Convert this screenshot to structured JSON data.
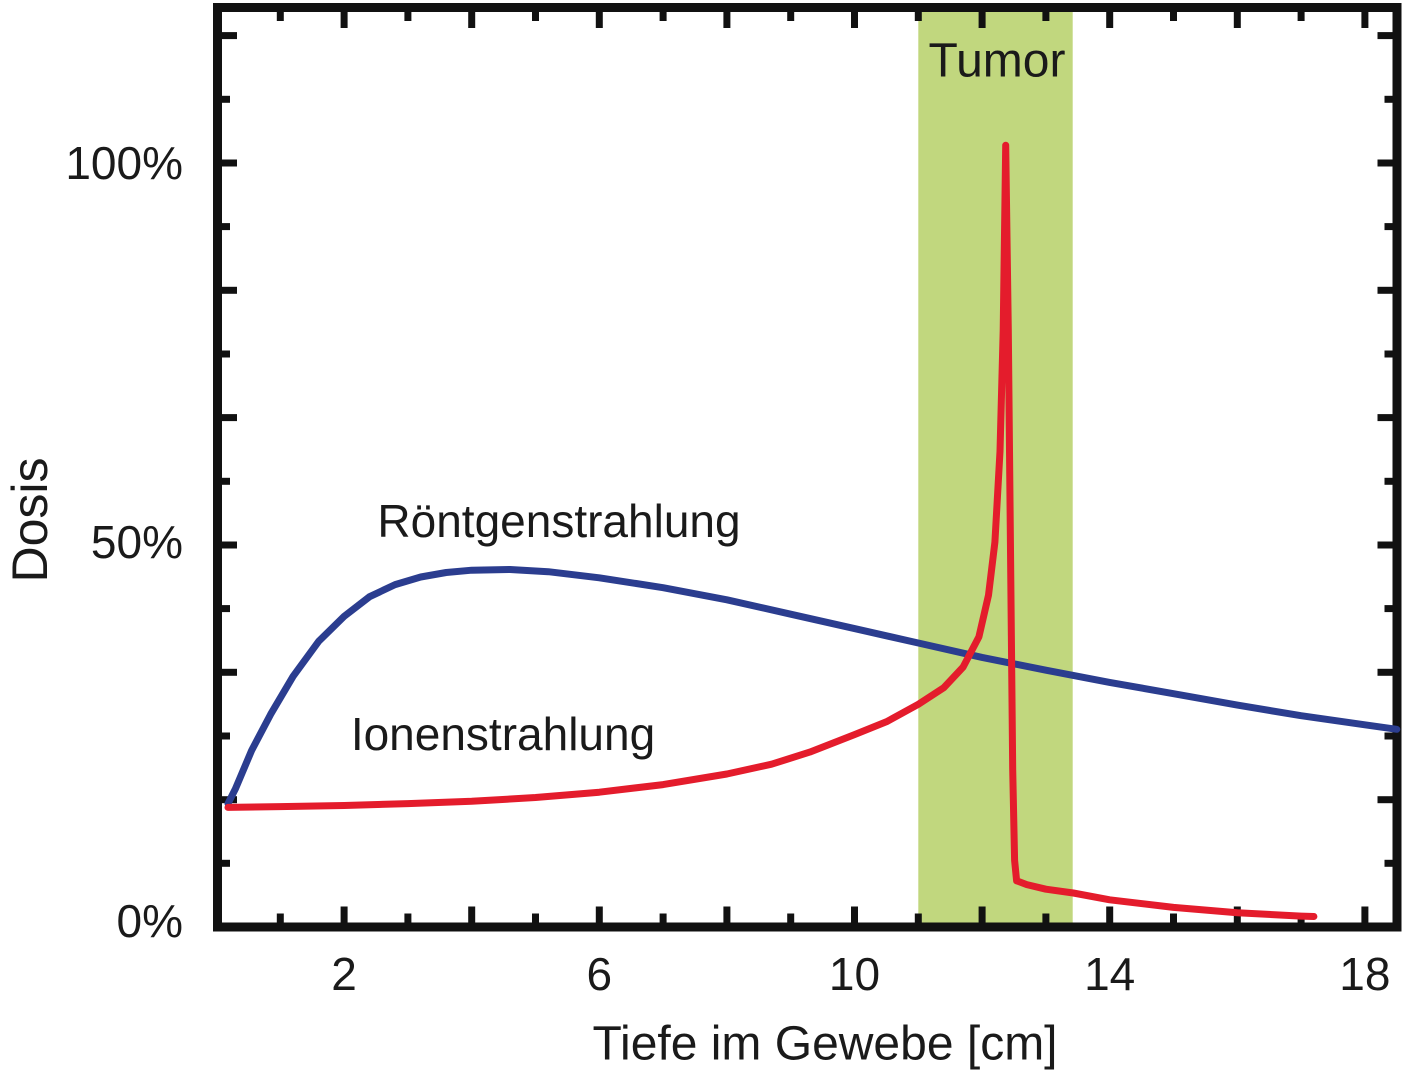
{
  "figure": {
    "y_axis_label": "Dosis",
    "x_axis_label": "Tiefe im Gewebe [cm]",
    "y_tick_labels": [
      {
        "value": 0,
        "label": "0%"
      },
      {
        "value": 50,
        "label": "50%"
      },
      {
        "value": 100,
        "label": "100%"
      }
    ],
    "x_tick_labels": [
      {
        "value": 2,
        "label": "2"
      },
      {
        "value": 6,
        "label": "6"
      },
      {
        "value": 10,
        "label": "10"
      },
      {
        "value": 14,
        "label": "14"
      },
      {
        "value": 18,
        "label": "18"
      }
    ]
  },
  "colors": {
    "frame": "#111111",
    "background": "#ffffff",
    "xray_blue": "#2b3d8f",
    "ion_red": "#e41c2c",
    "tumor_green": "#c1d77e",
    "text": "#1a1a1a"
  },
  "chart_data": {
    "type": "line",
    "title": "",
    "xlabel": "Tiefe im Gewebe [cm]",
    "ylabel": "Dosis",
    "x_unit": "cm",
    "y_unit": "percent of dose",
    "xlim": [
      0,
      18.5
    ],
    "ylim": [
      0,
      120
    ],
    "grid": false,
    "legend": "inline-labels",
    "x_minor_tick_step": 1,
    "x_major_ticks": [
      2,
      4,
      6,
      8,
      10,
      12,
      14,
      16,
      18
    ],
    "x_labeled_ticks": [
      2,
      6,
      10,
      14,
      18
    ],
    "y_labeled_ticks": [
      0,
      50,
      100
    ],
    "tumor_band": {
      "label": "Tumor",
      "x_start_cm": 11.0,
      "x_end_cm": 13.42,
      "color": "#c1d77e"
    },
    "series": [
      {
        "name": "Röntgenstrahlung",
        "color": "#2b3d8f",
        "points": [
          [
            0.18,
            15.5
          ],
          [
            0.3,
            17.5
          ],
          [
            0.55,
            22.5
          ],
          [
            0.85,
            27.3
          ],
          [
            1.2,
            32.3
          ],
          [
            1.6,
            36.9
          ],
          [
            2.0,
            40.2
          ],
          [
            2.4,
            42.8
          ],
          [
            2.8,
            44.4
          ],
          [
            3.2,
            45.4
          ],
          [
            3.6,
            46.0
          ],
          [
            4.0,
            46.3
          ],
          [
            4.6,
            46.4
          ],
          [
            5.2,
            46.1
          ],
          [
            6.0,
            45.3
          ],
          [
            7.0,
            44.0
          ],
          [
            8.0,
            42.4
          ],
          [
            9.0,
            40.5
          ],
          [
            10.0,
            38.6
          ],
          [
            11.0,
            36.7
          ],
          [
            12.0,
            34.8
          ],
          [
            13.0,
            33.1
          ],
          [
            14.0,
            31.5
          ],
          [
            15.0,
            30.0
          ],
          [
            16.0,
            28.5
          ],
          [
            17.0,
            27.1
          ],
          [
            18.0,
            25.9
          ],
          [
            18.5,
            25.3
          ]
        ]
      },
      {
        "name": "Ionenstrahlung",
        "color": "#e41c2c",
        "points": [
          [
            0.18,
            15.0
          ],
          [
            1.0,
            15.1
          ],
          [
            2.0,
            15.25
          ],
          [
            3.0,
            15.5
          ],
          [
            4.0,
            15.8
          ],
          [
            5.0,
            16.3
          ],
          [
            6.0,
            17.0
          ],
          [
            7.0,
            18.0
          ],
          [
            8.0,
            19.4
          ],
          [
            8.7,
            20.7
          ],
          [
            9.3,
            22.3
          ],
          [
            10.0,
            24.6
          ],
          [
            10.5,
            26.3
          ],
          [
            11.0,
            28.6
          ],
          [
            11.4,
            30.8
          ],
          [
            11.7,
            33.5
          ],
          [
            11.95,
            37.5
          ],
          [
            12.1,
            43.0
          ],
          [
            12.2,
            50.0
          ],
          [
            12.28,
            62.0
          ],
          [
            12.33,
            78.0
          ],
          [
            12.37,
            102.4
          ],
          [
            12.41,
            78.0
          ],
          [
            12.45,
            45.0
          ],
          [
            12.48,
            20.0
          ],
          [
            12.51,
            8.0
          ],
          [
            12.54,
            5.3
          ],
          [
            12.7,
            4.8
          ],
          [
            13.0,
            4.2
          ],
          [
            13.43,
            3.7
          ],
          [
            14.0,
            2.8
          ],
          [
            15.0,
            1.8
          ],
          [
            16.0,
            1.1
          ],
          [
            17.0,
            0.65
          ],
          [
            17.2,
            0.6
          ]
        ]
      }
    ]
  }
}
